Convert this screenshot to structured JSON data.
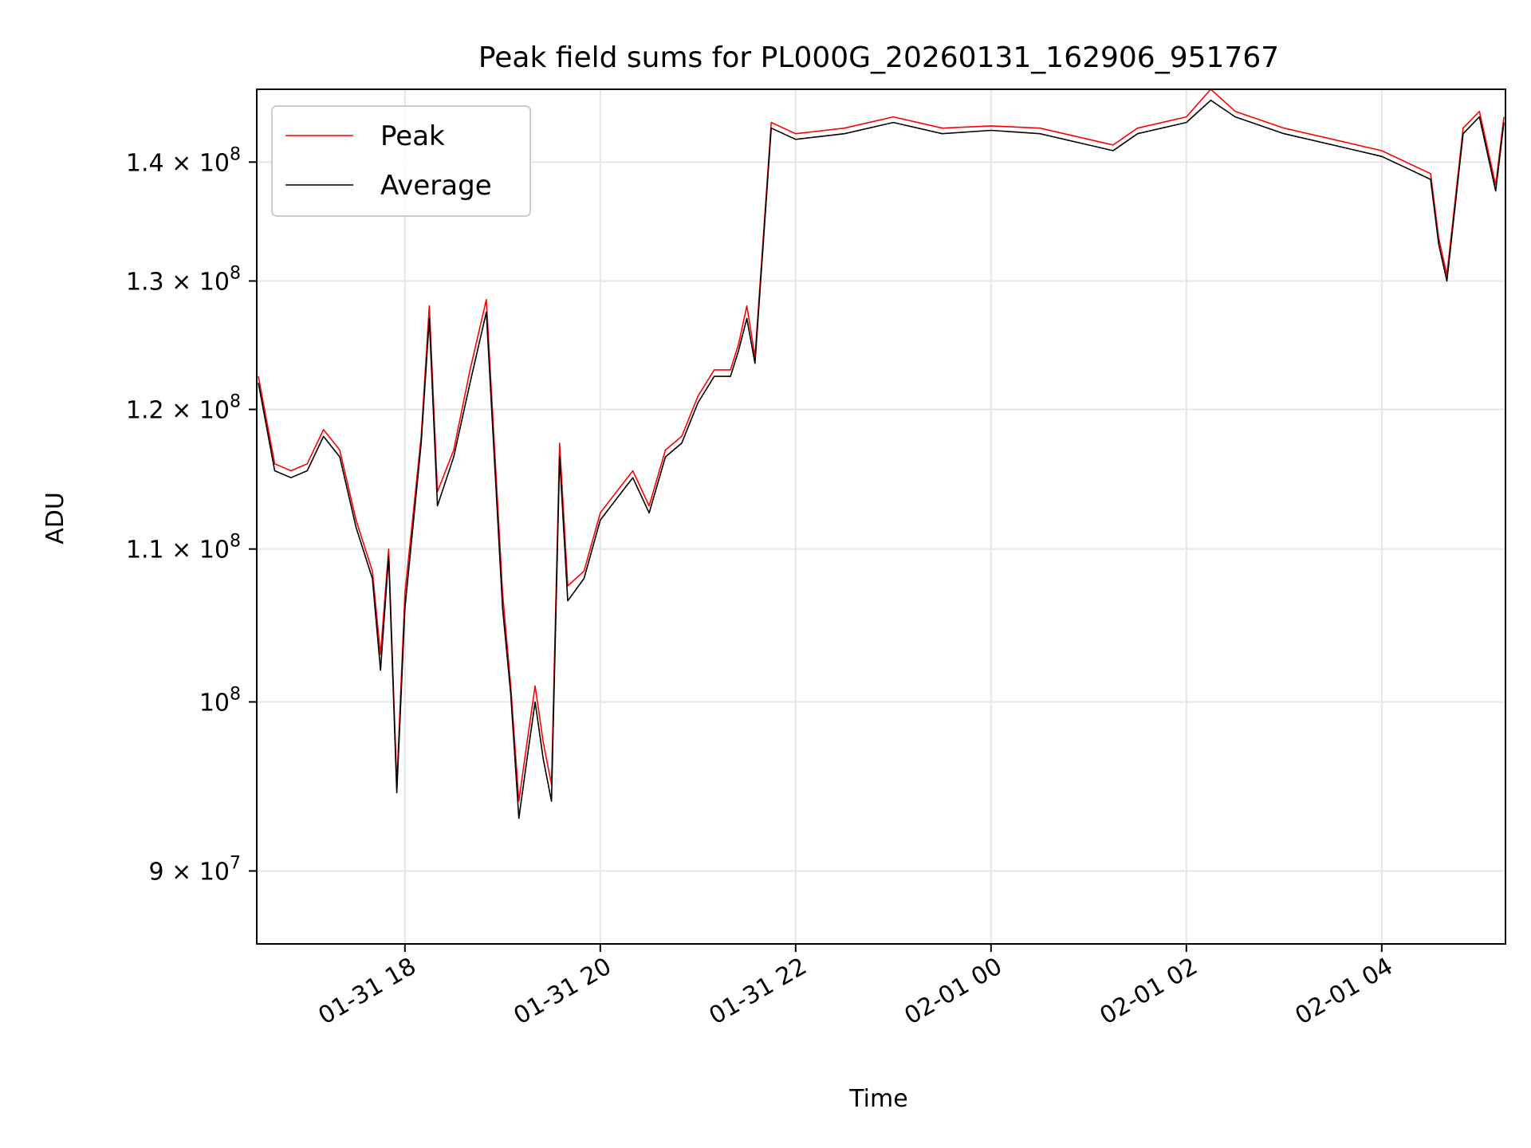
{
  "chart_data": {
    "type": "line",
    "title": "Peak field sums for PL000G_20260131_162906_951767",
    "xlabel": "Time",
    "ylabel": "ADU",
    "y_scale": "log",
    "xlim": [
      "2026-01-31 16:29",
      "2026-02-01 05:16"
    ],
    "ylim": [
      86000000,
      146500000
    ],
    "grid": true,
    "legend_position": "upper left",
    "x_ticks": [
      {
        "time": "2026-01-31 18:00",
        "label": "01-31 18"
      },
      {
        "time": "2026-01-31 20:00",
        "label": "01-31 20"
      },
      {
        "time": "2026-01-31 22:00",
        "label": "01-31 22"
      },
      {
        "time": "2026-02-01 00:00",
        "label": "02-01 00"
      },
      {
        "time": "2026-02-01 02:00",
        "label": "02-01 02"
      },
      {
        "time": "2026-02-01 04:00",
        "label": "02-01 04"
      }
    ],
    "y_ticks": [
      {
        "value": 90000000,
        "mantissa": "9",
        "exponent": "7"
      },
      {
        "value": 100000000,
        "mantissa": "",
        "exponent": "8"
      },
      {
        "value": 110000000,
        "mantissa": "1.1",
        "exponent": "8"
      },
      {
        "value": 120000000,
        "mantissa": "1.2",
        "exponent": "8"
      },
      {
        "value": 130000000,
        "mantissa": "1.3",
        "exponent": "8"
      },
      {
        "value": 140000000,
        "mantissa": "1.4",
        "exponent": "8"
      }
    ],
    "series": [
      {
        "name": "Peak",
        "color": "#ff0000",
        "x": [
          "2026-01-31 16:30",
          "2026-01-31 16:40",
          "2026-01-31 16:50",
          "2026-01-31 17:00",
          "2026-01-31 17:10",
          "2026-01-31 17:20",
          "2026-01-31 17:30",
          "2026-01-31 17:40",
          "2026-01-31 17:45",
          "2026-01-31 17:50",
          "2026-01-31 17:55",
          "2026-01-31 18:00",
          "2026-01-31 18:10",
          "2026-01-31 18:15",
          "2026-01-31 18:20",
          "2026-01-31 18:30",
          "2026-01-31 18:40",
          "2026-01-31 18:50",
          "2026-01-31 19:00",
          "2026-01-31 19:05",
          "2026-01-31 19:10",
          "2026-01-31 19:15",
          "2026-01-31 19:20",
          "2026-01-31 19:25",
          "2026-01-31 19:30",
          "2026-01-31 19:35",
          "2026-01-31 19:40",
          "2026-01-31 19:50",
          "2026-01-31 20:00",
          "2026-01-31 20:10",
          "2026-01-31 20:20",
          "2026-01-31 20:30",
          "2026-01-31 20:40",
          "2026-01-31 20:50",
          "2026-01-31 21:00",
          "2026-01-31 21:10",
          "2026-01-31 21:20",
          "2026-01-31 21:25",
          "2026-01-31 21:30",
          "2026-01-31 21:35",
          "2026-01-31 21:45",
          "2026-01-31 22:00",
          "2026-01-31 22:30",
          "2026-01-31 23:00",
          "2026-01-31 23:30",
          "2026-02-01 00:00",
          "2026-02-01 00:30",
          "2026-02-01 01:00",
          "2026-02-01 01:15",
          "2026-02-01 01:30",
          "2026-02-01 02:00",
          "2026-02-01 02:15",
          "2026-02-01 02:30",
          "2026-02-01 03:00",
          "2026-02-01 03:30",
          "2026-02-01 04:00",
          "2026-02-01 04:30",
          "2026-02-01 04:35",
          "2026-02-01 04:40",
          "2026-02-01 04:50",
          "2026-02-01 05:00",
          "2026-02-01 05:10",
          "2026-02-01 05:15"
        ],
        "y": [
          122500000,
          116000000,
          115500000,
          116000000,
          118500000,
          117000000,
          112000000,
          108500000,
          103000000,
          110000000,
          95000000,
          107000000,
          118000000,
          128000000,
          114000000,
          117000000,
          123000000,
          128500000,
          107000000,
          101000000,
          94000000,
          97500000,
          101000000,
          97500000,
          95000000,
          117500000,
          107500000,
          108500000,
          112500000,
          114000000,
          115500000,
          113000000,
          117000000,
          118000000,
          121000000,
          123000000,
          123000000,
          125000000,
          128000000,
          124000000,
          143500000,
          142500000,
          143000000,
          144000000,
          143000000,
          143200000,
          143000000,
          142000000,
          141500000,
          143000000,
          144000000,
          146500000,
          144500000,
          143000000,
          142000000,
          141000000,
          139000000,
          133500000,
          130500000,
          143000000,
          144500000,
          138000000,
          144000000
        ]
      },
      {
        "name": "Average",
        "color": "#000000",
        "x": [
          "2026-01-31 16:30",
          "2026-01-31 16:40",
          "2026-01-31 16:50",
          "2026-01-31 17:00",
          "2026-01-31 17:10",
          "2026-01-31 17:20",
          "2026-01-31 17:30",
          "2026-01-31 17:40",
          "2026-01-31 17:45",
          "2026-01-31 17:50",
          "2026-01-31 17:55",
          "2026-01-31 18:00",
          "2026-01-31 18:10",
          "2026-01-31 18:15",
          "2026-01-31 18:20",
          "2026-01-31 18:30",
          "2026-01-31 18:40",
          "2026-01-31 18:50",
          "2026-01-31 19:00",
          "2026-01-31 19:05",
          "2026-01-31 19:10",
          "2026-01-31 19:15",
          "2026-01-31 19:20",
          "2026-01-31 19:25",
          "2026-01-31 19:30",
          "2026-01-31 19:35",
          "2026-01-31 19:40",
          "2026-01-31 19:50",
          "2026-01-31 20:00",
          "2026-01-31 20:10",
          "2026-01-31 20:20",
          "2026-01-31 20:30",
          "2026-01-31 20:40",
          "2026-01-31 20:50",
          "2026-01-31 21:00",
          "2026-01-31 21:10",
          "2026-01-31 21:20",
          "2026-01-31 21:25",
          "2026-01-31 21:30",
          "2026-01-31 21:35",
          "2026-01-31 21:45",
          "2026-01-31 22:00",
          "2026-01-31 22:30",
          "2026-01-31 23:00",
          "2026-01-31 23:30",
          "2026-02-01 00:00",
          "2026-02-01 00:30",
          "2026-02-01 01:00",
          "2026-02-01 01:15",
          "2026-02-01 01:30",
          "2026-02-01 02:00",
          "2026-02-01 02:15",
          "2026-02-01 02:30",
          "2026-02-01 03:00",
          "2026-02-01 03:30",
          "2026-02-01 04:00",
          "2026-02-01 04:30",
          "2026-02-01 04:35",
          "2026-02-01 04:40",
          "2026-02-01 04:50",
          "2026-02-01 05:00",
          "2026-02-01 05:10",
          "2026-02-01 05:15"
        ],
        "y": [
          122000000,
          115500000,
          115000000,
          115500000,
          118000000,
          116500000,
          111500000,
          108000000,
          102000000,
          109500000,
          94500000,
          106000000,
          117500000,
          127000000,
          113000000,
          116500000,
          122000000,
          127500000,
          106000000,
          100500000,
          93000000,
          96500000,
          100000000,
          96500000,
          94000000,
          116500000,
          106500000,
          108000000,
          112000000,
          113500000,
          115000000,
          112500000,
          116500000,
          117500000,
          120500000,
          122500000,
          122500000,
          124500000,
          127000000,
          123500000,
          143000000,
          142000000,
          142500000,
          143500000,
          142500000,
          142800000,
          142500000,
          141500000,
          141000000,
          142500000,
          143500000,
          145500000,
          144000000,
          142500000,
          141500000,
          140500000,
          138500000,
          133000000,
          130000000,
          142500000,
          144000000,
          137500000,
          143500000
        ]
      }
    ]
  }
}
